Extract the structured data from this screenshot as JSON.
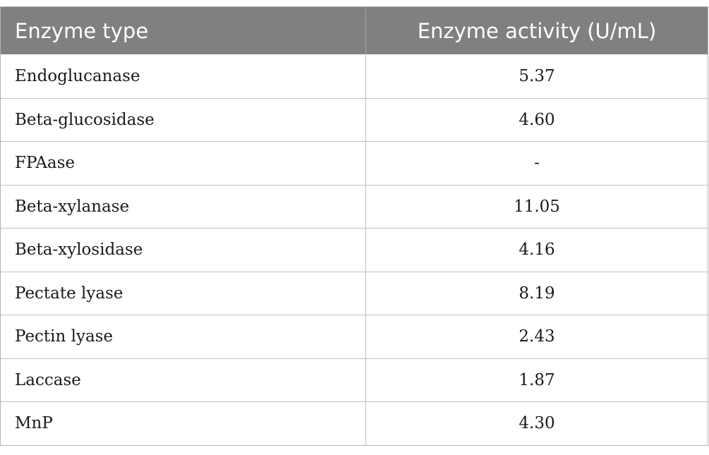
{
  "table": {
    "headers": [
      "Enzyme type",
      "Enzyme activity (U/mL)"
    ],
    "rows": [
      {
        "enzyme": "Endoglucanase",
        "activity": "5.37"
      },
      {
        "enzyme": "Beta-glucosidase",
        "activity": "4.60"
      },
      {
        "enzyme": "FPAase",
        "activity": "-"
      },
      {
        "enzyme": "Beta-xylanase",
        "activity": "11.05"
      },
      {
        "enzyme": "Beta-xylosidase",
        "activity": "4.16"
      },
      {
        "enzyme": "Pectate lyase",
        "activity": "8.19"
      },
      {
        "enzyme": "Pectin lyase",
        "activity": "2.43"
      },
      {
        "enzyme": "Laccase",
        "activity": "1.87"
      },
      {
        "enzyme": "MnP",
        "activity": "4.30"
      }
    ]
  },
  "colors": {
    "header_bg": "#808080",
    "header_text": "#ffffff",
    "border": "#c0c0c0"
  }
}
